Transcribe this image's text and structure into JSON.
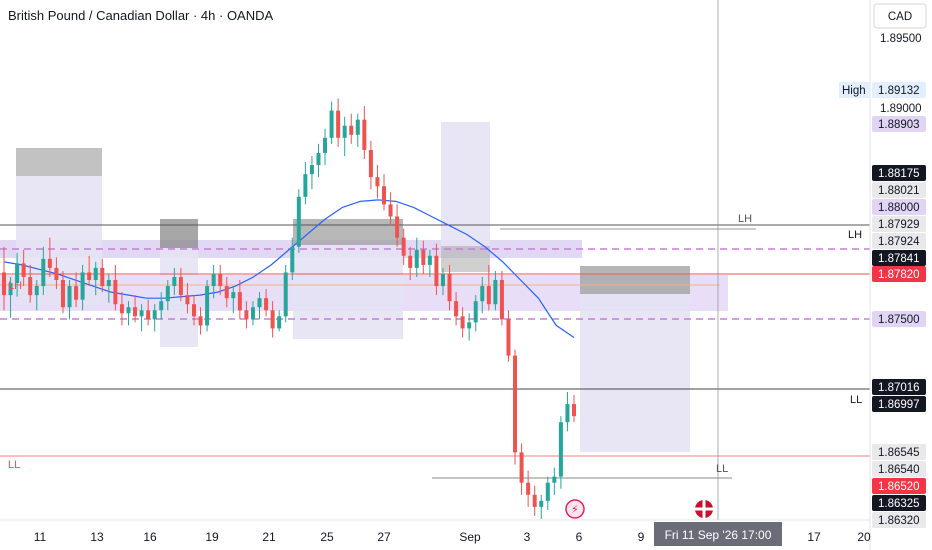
{
  "title": "British Pound / Canadian Dollar · 4h · OANDA",
  "currency": "CAD",
  "colors": {
    "up": "#26a69a",
    "down": "#ef5350",
    "ma": "#2962ff",
    "zone": "#d9cff0",
    "purple_dash": "#c77dd9",
    "red_line": "#ef5350",
    "dark_line": "#131722"
  },
  "chart_data": {
    "type": "candlestick",
    "ylim": [
      1.8632,
      1.8965
    ],
    "price_ticks": [
      "1.89500",
      "1.89000"
    ],
    "x_ticks": [
      "11",
      "13",
      "16",
      "19",
      "21",
      "25",
      "27",
      "Sep",
      "3",
      "6",
      "9",
      "17",
      "20"
    ],
    "crosshair_time": "Fri 11 Sep '26   17:00",
    "price_labels": [
      {
        "text": "High",
        "value": "1.89132",
        "style": "high"
      },
      {
        "text": "",
        "value": "1.88903",
        "style": "lavender"
      },
      {
        "text": "",
        "value": "1.88175",
        "style": "black"
      },
      {
        "text": "",
        "value": "1.88021",
        "style": "grey"
      },
      {
        "text": "",
        "value": "1.88000",
        "style": "lavender"
      },
      {
        "text": "",
        "value": "1.87929",
        "style": "grey"
      },
      {
        "text": "",
        "value": "1.87924",
        "style": "grey"
      },
      {
        "text": "",
        "value": "1.87841",
        "style": "black"
      },
      {
        "text": "",
        "value": "1.87820",
        "style": "red"
      },
      {
        "text": "",
        "value": "1.87500",
        "style": "lavender"
      },
      {
        "text": "",
        "value": "1.87016",
        "style": "black"
      },
      {
        "text": "",
        "value": "1.86997",
        "style": "black"
      },
      {
        "text": "",
        "value": "1.86545",
        "style": "grey"
      },
      {
        "text": "",
        "value": "1.86540",
        "style": "grey"
      },
      {
        "text": "",
        "value": "1.86520",
        "style": "red"
      },
      {
        "text": "",
        "value": "1.86325",
        "style": "black"
      },
      {
        "text": "",
        "value": "1.86320",
        "style": "grey"
      }
    ],
    "annotations": [
      "LH",
      "LH",
      "LH",
      "LL",
      "LL",
      "LL"
    ],
    "candles": [
      [
        1.8795,
        1.8812,
        1.877,
        1.878
      ],
      [
        1.878,
        1.8792,
        1.8765,
        1.8788
      ],
      [
        1.8788,
        1.8808,
        1.8779,
        1.8801
      ],
      [
        1.8801,
        1.881,
        1.8786,
        1.8792
      ],
      [
        1.8792,
        1.88,
        1.8775,
        1.878
      ],
      [
        1.878,
        1.879,
        1.877,
        1.8786
      ],
      [
        1.8786,
        1.8812,
        1.878,
        1.8804
      ],
      [
        1.8804,
        1.8818,
        1.8792,
        1.8798
      ],
      [
        1.8798,
        1.8805,
        1.8784,
        1.879
      ],
      [
        1.879,
        1.8796,
        1.8768,
        1.8772
      ],
      [
        1.8772,
        1.879,
        1.8764,
        1.8786
      ],
      [
        1.8786,
        1.8795,
        1.8772,
        1.8777
      ],
      [
        1.8777,
        1.88,
        1.877,
        1.8795
      ],
      [
        1.8795,
        1.8806,
        1.8786,
        1.879
      ],
      [
        1.879,
        1.8802,
        1.878,
        1.8798
      ],
      [
        1.8798,
        1.8804,
        1.8782,
        1.8786
      ],
      [
        1.8786,
        1.8794,
        1.8775,
        1.879
      ],
      [
        1.879,
        1.88,
        1.877,
        1.8774
      ],
      [
        1.8774,
        1.8782,
        1.876,
        1.8768
      ],
      [
        1.8768,
        1.8776,
        1.876,
        1.8772
      ],
      [
        1.8772,
        1.878,
        1.8762,
        1.8766
      ],
      [
        1.8766,
        1.8774,
        1.8756,
        1.877
      ],
      [
        1.877,
        1.8777,
        1.876,
        1.8764
      ],
      [
        1.8764,
        1.8774,
        1.8756,
        1.877
      ],
      [
        1.877,
        1.8782,
        1.8764,
        1.8776
      ],
      [
        1.8776,
        1.879,
        1.877,
        1.8786
      ],
      [
        1.8786,
        1.8798,
        1.878,
        1.8792
      ],
      [
        1.8792,
        1.8798,
        1.8776,
        1.878
      ],
      [
        1.878,
        1.8788,
        1.8768,
        1.8774
      ],
      [
        1.8774,
        1.878,
        1.876,
        1.8766
      ],
      [
        1.8766,
        1.8772,
        1.8754,
        1.876
      ],
      [
        1.876,
        1.879,
        1.8756,
        1.8786
      ],
      [
        1.8786,
        1.88,
        1.8778,
        1.8794
      ],
      [
        1.8794,
        1.88,
        1.878,
        1.8786
      ],
      [
        1.8786,
        1.8792,
        1.8772,
        1.8778
      ],
      [
        1.8778,
        1.8786,
        1.8768,
        1.8782
      ],
      [
        1.8782,
        1.879,
        1.8764,
        1.877
      ],
      [
        1.877,
        1.8776,
        1.8758,
        1.8764
      ],
      [
        1.8764,
        1.8776,
        1.876,
        1.8772
      ],
      [
        1.8772,
        1.8782,
        1.8764,
        1.8778
      ],
      [
        1.8778,
        1.8784,
        1.8766,
        1.877
      ],
      [
        1.877,
        1.8776,
        1.8752,
        1.8758
      ],
      [
        1.8758,
        1.877,
        1.8756,
        1.8766
      ],
      [
        1.8766,
        1.88,
        1.8762,
        1.8795
      ],
      [
        1.8795,
        1.8818,
        1.879,
        1.8812
      ],
      [
        1.8812,
        1.885,
        1.8808,
        1.8845
      ],
      [
        1.8845,
        1.8868,
        1.884,
        1.886
      ],
      [
        1.886,
        1.8872,
        1.885,
        1.8866
      ],
      [
        1.8866,
        1.888,
        1.8858,
        1.8874
      ],
      [
        1.8874,
        1.889,
        1.8866,
        1.8884
      ],
      [
        1.8884,
        1.8908,
        1.888,
        1.8902
      ],
      [
        1.8902,
        1.891,
        1.8878,
        1.8884
      ],
      [
        1.8884,
        1.8898,
        1.8872,
        1.8892
      ],
      [
        1.8892,
        1.89,
        1.888,
        1.8886
      ],
      [
        1.8886,
        1.89,
        1.8878,
        1.8896
      ],
      [
        1.8896,
        1.8905,
        1.887,
        1.8876
      ],
      [
        1.8876,
        1.8882,
        1.885,
        1.8858
      ],
      [
        1.8858,
        1.8866,
        1.8844,
        1.8852
      ],
      [
        1.8852,
        1.886,
        1.8836,
        1.884
      ],
      [
        1.884,
        1.8848,
        1.8826,
        1.8832
      ],
      [
        1.8832,
        1.884,
        1.8812,
        1.8818
      ],
      [
        1.8818,
        1.8824,
        1.88,
        1.8806
      ],
      [
        1.8806,
        1.8812,
        1.879,
        1.8798
      ],
      [
        1.8798,
        1.8818,
        1.8792,
        1.881
      ],
      [
        1.881,
        1.8816,
        1.8794,
        1.88
      ],
      [
        1.88,
        1.881,
        1.8792,
        1.8806
      ],
      [
        1.8806,
        1.8814,
        1.878,
        1.8786
      ],
      [
        1.8786,
        1.8798,
        1.878,
        1.8794
      ],
      [
        1.8794,
        1.88,
        1.877,
        1.8776
      ],
      [
        1.8776,
        1.8782,
        1.876,
        1.8766
      ],
      [
        1.8766,
        1.8772,
        1.8752,
        1.8758
      ],
      [
        1.8758,
        1.8768,
        1.875,
        1.8762
      ],
      [
        1.8762,
        1.878,
        1.8756,
        1.8776
      ],
      [
        1.8776,
        1.8792,
        1.8768,
        1.8786
      ],
      [
        1.8786,
        1.88,
        1.877,
        1.8774
      ],
      [
        1.8774,
        1.8796,
        1.877,
        1.879
      ],
      [
        1.879,
        1.8796,
        1.876,
        1.8764
      ],
      [
        1.8764,
        1.877,
        1.8736,
        1.874
      ],
      [
        1.874,
        1.8744,
        1.8668,
        1.8676
      ],
      [
        1.8676,
        1.8682,
        1.8648,
        1.8656
      ],
      [
        1.8656,
        1.8664,
        1.864,
        1.8648
      ],
      [
        1.8648,
        1.8654,
        1.8634,
        1.864
      ],
      [
        1.864,
        1.8648,
        1.8632,
        1.8644
      ],
      [
        1.8644,
        1.866,
        1.8638,
        1.8656
      ],
      [
        1.8656,
        1.8666,
        1.8648,
        1.866
      ],
      [
        1.866,
        1.87,
        1.8652,
        1.8696
      ],
      [
        1.8696,
        1.8716,
        1.869,
        1.8708
      ],
      [
        1.8708,
        1.8714,
        1.8696,
        1.87
      ]
    ],
    "ma": [
      1.8802,
      1.88,
      1.8797,
      1.8794,
      1.879,
      1.8786,
      1.8782,
      1.878,
      1.8778,
      1.8778,
      1.8779,
      1.878,
      1.8782,
      1.8786,
      1.8792,
      1.88,
      1.881,
      1.882,
      1.883,
      1.8838,
      1.8842,
      1.8843,
      1.8842,
      1.8838,
      1.8832,
      1.8826,
      1.882,
      1.8812,
      1.8802,
      1.879,
      1.8778,
      1.876,
      1.8752
    ]
  }
}
